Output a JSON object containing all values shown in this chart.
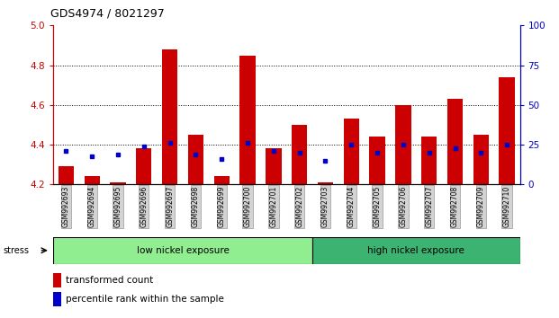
{
  "title": "GDS4974 / 8021297",
  "samples": [
    "GSM992693",
    "GSM992694",
    "GSM992695",
    "GSM992696",
    "GSM992697",
    "GSM992698",
    "GSM992699",
    "GSM992700",
    "GSM992701",
    "GSM992702",
    "GSM992703",
    "GSM992704",
    "GSM992705",
    "GSM992706",
    "GSM992707",
    "GSM992708",
    "GSM992709",
    "GSM992710"
  ],
  "bar_values": [
    4.29,
    4.24,
    4.21,
    4.38,
    4.88,
    4.45,
    4.24,
    4.85,
    4.38,
    4.5,
    4.21,
    4.53,
    4.44,
    4.6,
    4.44,
    4.63,
    4.45,
    4.74
  ],
  "blue_values": [
    4.37,
    4.34,
    4.35,
    4.39,
    4.41,
    4.35,
    4.33,
    4.41,
    4.37,
    4.36,
    4.32,
    4.4,
    4.36,
    4.4,
    4.36,
    4.38,
    4.36,
    4.4
  ],
  "bar_color": "#cc0000",
  "blue_color": "#0000cc",
  "ylim_left": [
    4.2,
    5.0
  ],
  "ylim_right": [
    0,
    100
  ],
  "yticks_left": [
    4.2,
    4.4,
    4.6,
    4.8,
    5.0
  ],
  "yticks_right": [
    0,
    25,
    50,
    75,
    100
  ],
  "group1_label": "low nickel exposure",
  "group2_label": "high nickel exposure",
  "group1_count": 10,
  "stress_label": "stress",
  "legend_bar": "transformed count",
  "legend_blue": "percentile rank within the sample",
  "bar_bottom": 4.2,
  "tick_color_left": "#cc0000",
  "tick_color_right": "#0000cc",
  "group1_color": "#90ee90",
  "group2_color": "#3cb371",
  "xticklabel_bg": "#d3d3d3"
}
